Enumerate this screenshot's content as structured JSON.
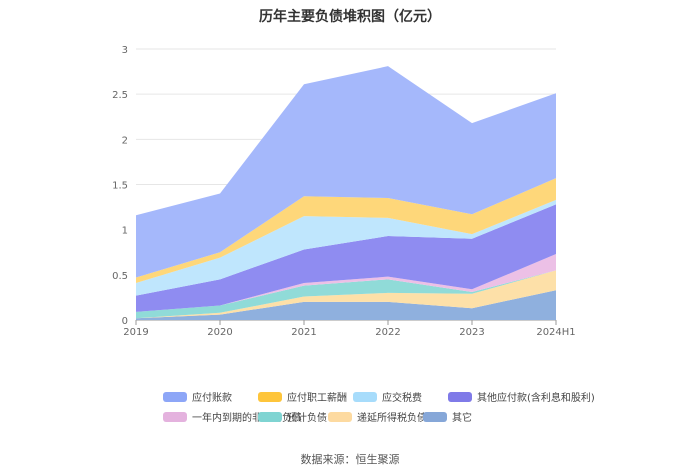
{
  "chart_data": {
    "type": "area",
    "stacked": true,
    "title": "历年主要负债堆积图（亿元）",
    "x": [
      "2019",
      "2020",
      "2021",
      "2022",
      "2023",
      "2024H1"
    ],
    "ylim": [
      0,
      3
    ],
    "yticks": [
      "0",
      "0.5",
      "1",
      "1.5",
      "2",
      "2.5",
      "3"
    ],
    "grid": true,
    "legend_position": "bottom",
    "series": [
      {
        "name": "其它",
        "color": "#8fb0de",
        "values": [
          0.02,
          0.06,
          0.2,
          0.2,
          0.13,
          0.33
        ]
      },
      {
        "name": "递延所得税负债",
        "color": "#fde0a8",
        "values": [
          0.0,
          0.02,
          0.06,
          0.1,
          0.16,
          0.22
        ]
      },
      {
        "name": "预计负债",
        "color": "#90dbd8",
        "values": [
          0.07,
          0.08,
          0.12,
          0.15,
          0.02,
          0.0
        ]
      },
      {
        "name": "一年内到期的非流动负债",
        "color": "#ecc0e6",
        "values": [
          0.0,
          0.0,
          0.03,
          0.03,
          0.03,
          0.18
        ]
      },
      {
        "name": "其他应付款(含利息和股利)",
        "color": "#8f8cf1",
        "values": [
          0.18,
          0.29,
          0.37,
          0.45,
          0.56,
          0.55
        ]
      },
      {
        "name": "应交税费",
        "color": "#bfe6fd",
        "values": [
          0.14,
          0.24,
          0.37,
          0.2,
          0.05,
          0.05
        ]
      },
      {
        "name": "应付职工薪酬",
        "color": "#fed77a",
        "values": [
          0.06,
          0.06,
          0.22,
          0.22,
          0.22,
          0.24
        ]
      },
      {
        "name": "应付账款",
        "color": "#a5b8fb",
        "values": [
          0.69,
          0.65,
          1.24,
          1.46,
          1.01,
          0.94
        ]
      }
    ]
  },
  "legend": {
    "row1": [
      {
        "label": "应付账款",
        "color": "#8da6f7"
      },
      {
        "label": "应付职工薪酬",
        "color": "#fec53b"
      },
      {
        "label": "应交税费",
        "color": "#a7dcfb"
      },
      {
        "label": "其他应付款(含利息和股利)",
        "color": "#7f7ae8"
      }
    ],
    "row2": [
      {
        "label": "一年内到期的非流动负债",
        "color": "#e4b2de"
      },
      {
        "label": "预计负债",
        "color": "#7fd4d2"
      },
      {
        "label": "递延所得税负债",
        "color": "#fddaa0"
      },
      {
        "label": "其它",
        "color": "#86a7d8"
      }
    ]
  },
  "source": "数据来源：恒生聚源"
}
